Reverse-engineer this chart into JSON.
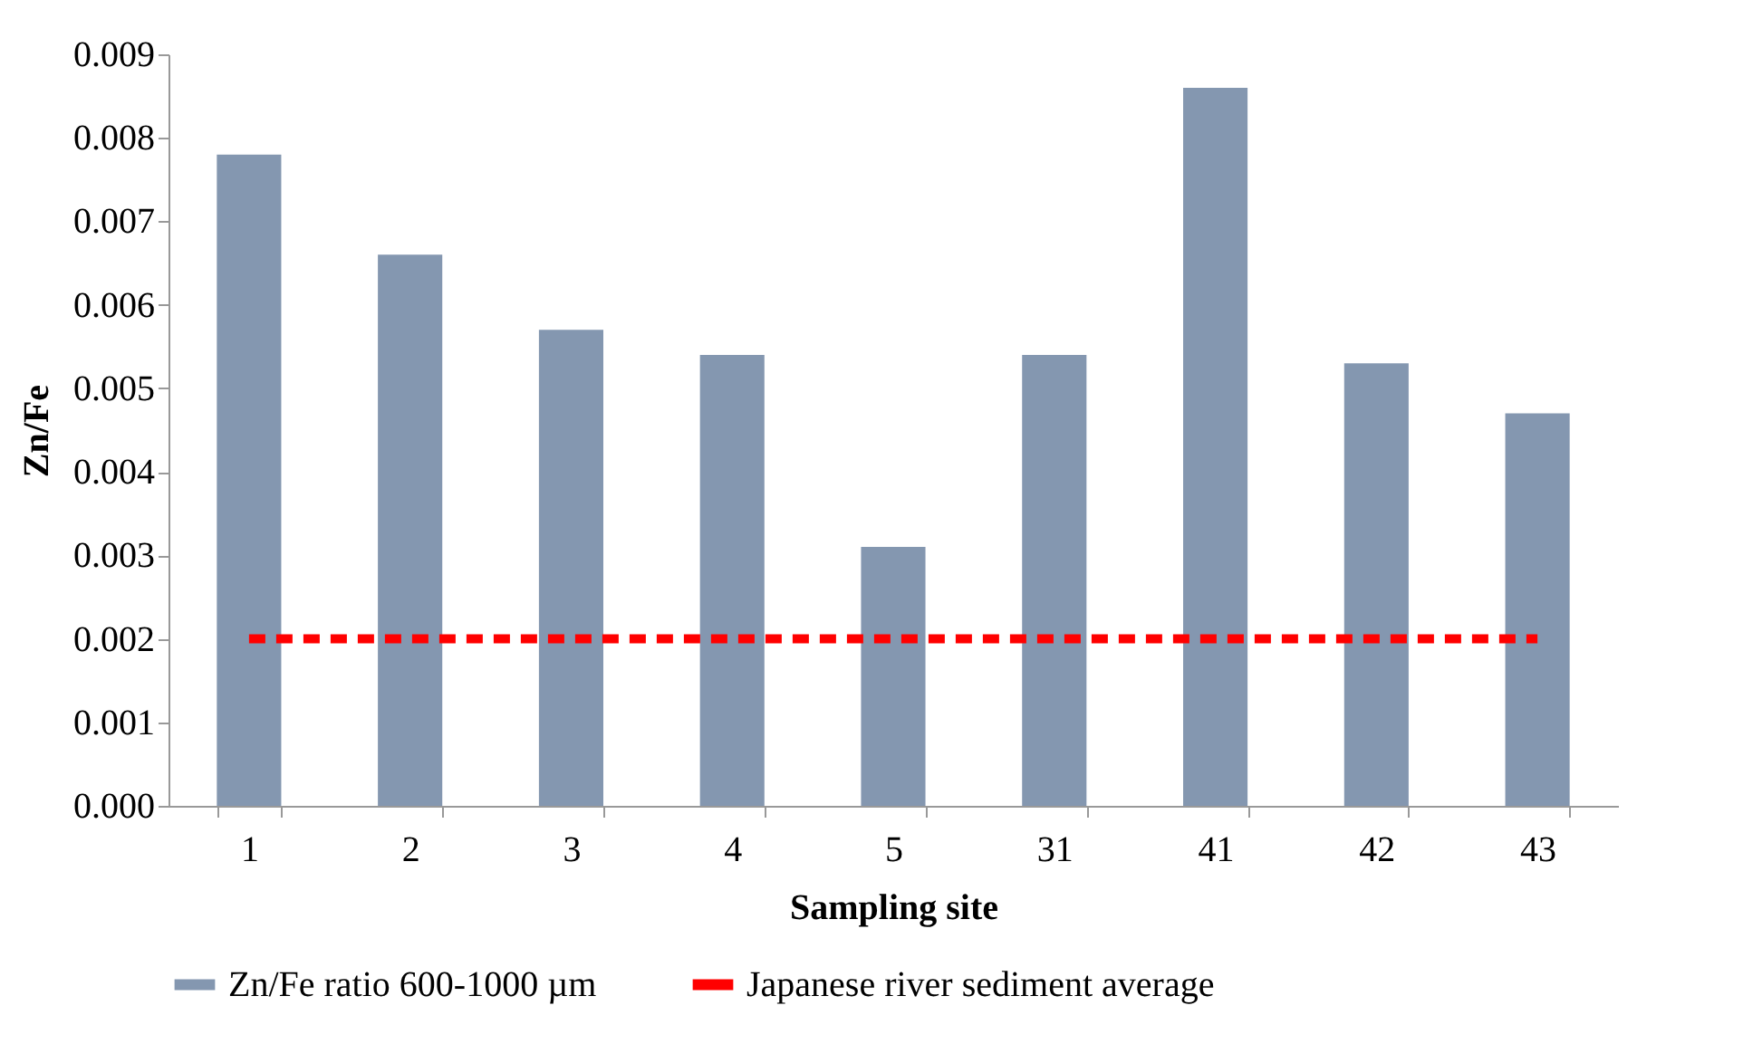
{
  "chart_data": {
    "type": "bar",
    "xlabel": "Sampling site",
    "ylabel": "Zn/Fe",
    "categories": [
      "1",
      "2",
      "3",
      "4",
      "5",
      "31",
      "41",
      "42",
      "43"
    ],
    "series": [
      {
        "name": "Zn/Fe ratio 600-1000 µm",
        "color": "#8497b0",
        "values": [
          0.0078,
          0.0066,
          0.0057,
          0.0054,
          0.0031,
          0.0054,
          0.0086,
          0.0053,
          0.0047
        ]
      },
      {
        "name": "Japanese river sediment average",
        "type": "line",
        "color": "#ff0000",
        "line_style": "dashed",
        "values": [
          0.002,
          0.002,
          0.002,
          0.002,
          0.002,
          0.002,
          0.002,
          0.002,
          0.002
        ]
      }
    ],
    "ylim": [
      0,
      0.009
    ],
    "yticks": [
      {
        "value": 0,
        "label": "0.000"
      },
      {
        "value": 0.001,
        "label": "0.001"
      },
      {
        "value": 0.002,
        "label": "0.002"
      },
      {
        "value": 0.003,
        "label": "0.003"
      },
      {
        "value": 0.004,
        "label": "0.004"
      },
      {
        "value": 0.005,
        "label": "0.005"
      },
      {
        "value": 0.006,
        "label": "0.006"
      },
      {
        "value": 0.007,
        "label": "0.007"
      },
      {
        "value": 0.008,
        "label": "0.008"
      },
      {
        "value": 0.009,
        "label": "0.009"
      }
    ],
    "grid": false,
    "legend": "bottom",
    "marker": "none"
  }
}
